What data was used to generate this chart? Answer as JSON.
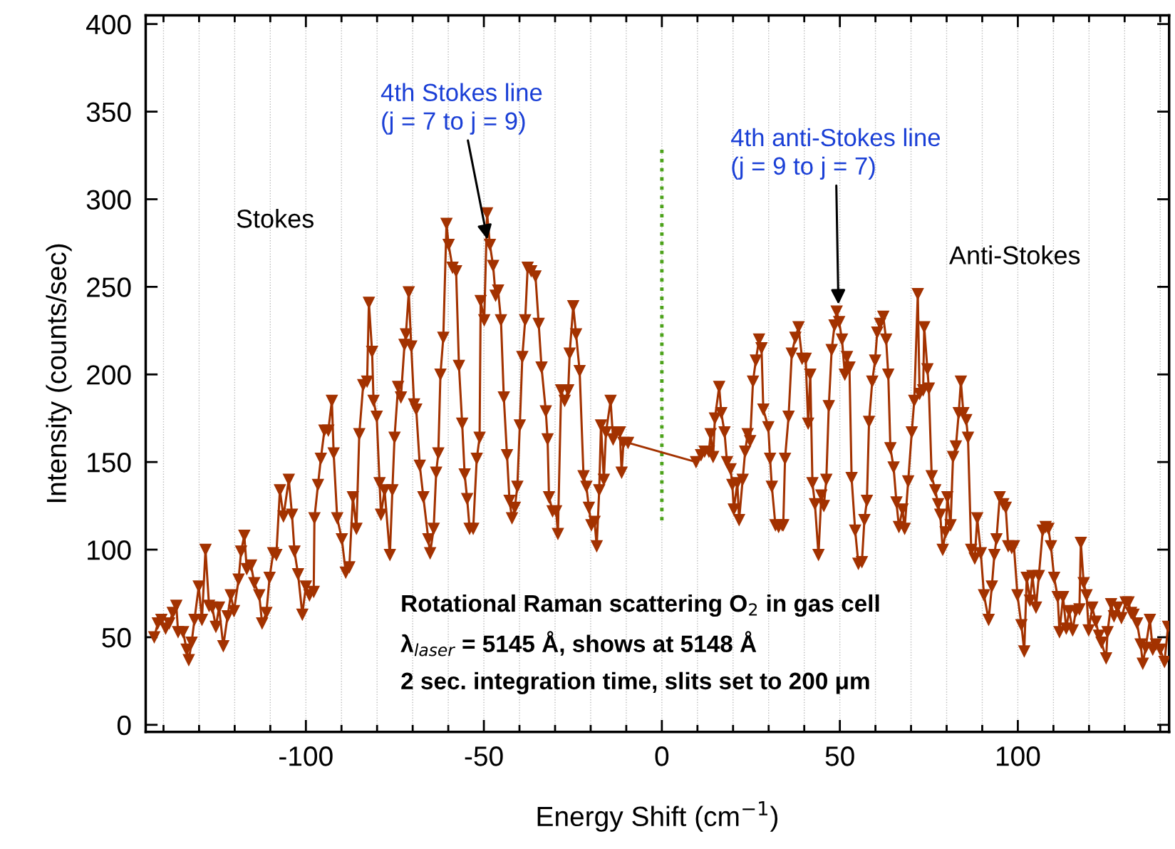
{
  "chart_data": {
    "type": "line",
    "xlabel": "Energy Shift (cm$^{−1}$)",
    "ylabel": "Intensity (counts/sec)",
    "xlim": [
      -145,
      142.5
    ],
    "ylim": [
      -4,
      405
    ],
    "xticks": [
      {
        "value": -140,
        "label": null
      },
      {
        "value": -130,
        "label": null
      },
      {
        "value": -120,
        "label": null
      },
      {
        "value": -110,
        "label": null
      },
      -100,
      {
        "value": -90,
        "label": null
      },
      {
        "value": -80,
        "label": null
      },
      {
        "value": -70,
        "label": null
      },
      {
        "value": -60,
        "label": null
      },
      -50,
      {
        "value": -40,
        "label": null
      },
      {
        "value": -30,
        "label": null
      },
      {
        "value": -20,
        "label": null
      },
      {
        "value": -10,
        "label": null
      },
      0,
      {
        "value": 10,
        "label": null
      },
      {
        "value": 20,
        "label": null
      },
      {
        "value": 30,
        "label": null
      },
      {
        "value": 40,
        "label": null
      },
      50,
      {
        "value": 60,
        "label": null
      },
      {
        "value": 70,
        "label": null
      },
      {
        "value": 80,
        "label": null
      },
      {
        "value": 90,
        "label": null
      },
      100,
      {
        "value": 110,
        "label": null
      },
      {
        "value": 120,
        "label": null
      },
      {
        "value": 130,
        "label": null
      },
      {
        "value": 140,
        "label": null
      }
    ],
    "yticks": [
      0,
      50,
      100,
      150,
      200,
      250,
      300,
      350,
      400
    ],
    "grid": "x",
    "legend": false,
    "marker": "triangle",
    "line_style": "solid",
    "ref_lines": [
      {
        "axis": "x",
        "value": 0,
        "color": "#4ca21a",
        "line_style": "dotted"
      }
    ],
    "annotations": [
      "Stokes",
      "Anti-Stokes",
      {
        "text": "4th Stokes line\n(j = 7 to j = 9)",
        "x": -49,
        "y": 277
      },
      {
        "text": "4th anti-Stokes line\n(j = 9 to j = 7)",
        "x": 49.6,
        "y": 240
      },
      "Rotational Raman scattering O$_{2}$ in gas cell",
      "λ$_{laser}$ = 5145 Å, shows at 5148 Å",
      "2 sec. integration time, slits set to 200 μm"
    ],
    "series": [
      {
        "color": "#a33200",
        "x": [
          -142.6,
          -141.6,
          -140.6,
          -139.4,
          -138.4,
          -137.4,
          -136.4,
          -135.9,
          -134.5,
          -133.5,
          -132.9,
          -132.1,
          -131.3,
          -130.1,
          -129.2,
          -128.2,
          -127.2,
          -126.3,
          -125.3,
          -124.4,
          -123.2,
          -122.0,
          -121.1,
          -120.2,
          -118.9,
          -118.2,
          -117.3,
          -116.6,
          -115.4,
          -114.5,
          -113.1,
          -112.3,
          -111.1,
          -110.2,
          -109.2,
          -108.3,
          -107.3,
          -106.3,
          -104.8,
          -103.9,
          -103.2,
          -102.2,
          -101.0,
          -100.0,
          -99.0,
          -97.8,
          -97.6,
          -96.6,
          -95.8,
          -94.8,
          -93.7,
          -92.7,
          -92.2,
          -91.2,
          -89.9,
          -88.8,
          -87.8,
          -86.8,
          -85.8,
          -85.0,
          -83.9,
          -82.8,
          -82.3,
          -81.4,
          -81.0,
          -80.1,
          -79.3,
          -78.9,
          -77.9,
          -76.4,
          -75.7,
          -75.1,
          -74.1,
          -73.3,
          -72.3,
          -71.9,
          -71.1,
          -70.4,
          -69.6,
          -69.0,
          -68.0,
          -67.0,
          -65.6,
          -65.1,
          -64.1,
          -63.4,
          -62.8,
          -62.2,
          -61.4,
          -60.5,
          -59.9,
          -58.8,
          -57.8,
          -57.0,
          -56.1,
          -55.4,
          -54.7,
          -54.0,
          -53.0,
          -52.0,
          -51.2,
          -50.9,
          -49.9,
          -49.1,
          -48.3,
          -47.4,
          -46.7,
          -46.0,
          -45.2,
          -44.4,
          -43.5,
          -42.8,
          -42.1,
          -41.3,
          -40.6,
          -39.9,
          -39.2,
          -38.4,
          -37.7,
          -36.7,
          -35.5,
          -34.6,
          -33.8,
          -32.6,
          -32.1,
          -31.7,
          -30.7,
          -29.7,
          -29.2,
          -28.3,
          -27.3,
          -26.3,
          -25.9,
          -24.9,
          -24.1,
          -23.1,
          -22.0,
          -21.2,
          -20.5,
          -19.8,
          -18.9,
          -18.3,
          -17.6,
          -17.1,
          -16.3,
          -15.7,
          -14.4,
          -13.7,
          -12.8,
          -11.8,
          -11.3,
          -10.8,
          -9.5,
          9.6,
          11.0,
          12.0,
          13.2,
          13.7,
          14.4,
          14.9,
          16.1,
          16.7,
          17.6,
          18.3,
          19.3,
          19.8,
          20.2,
          21.2,
          21.7,
          22.7,
          23.4,
          24.1,
          24.8,
          25.6,
          26.4,
          27.3,
          28.0,
          28.5,
          29.9,
          30.4,
          30.9,
          31.9,
          32.8,
          33.8,
          34.1,
          34.6,
          35.6,
          36.5,
          37.5,
          38.4,
          39.4,
          40.4,
          41.1,
          41.7,
          42.3,
          43.0,
          44.0,
          44.8,
          45.5,
          46.2,
          46.9,
          47.7,
          48.5,
          49.1,
          49.8,
          50.6,
          51.4,
          52.0,
          52.7,
          53.3,
          54.3,
          55.2,
          56.2,
          56.9,
          57.6,
          58.2,
          59.1,
          59.9,
          60.5,
          61.3,
          62.2,
          63.0,
          63.6,
          64.2,
          65.1,
          65.9,
          66.6,
          67.6,
          68.2,
          69.2,
          70.2,
          70.9,
          71.9,
          72.4,
          73.4,
          73.7,
          74.6,
          75.0,
          75.8,
          76.8,
          77.6,
          78.2,
          78.9,
          79.7,
          80.2,
          81.1,
          81.8,
          82.6,
          83.4,
          84.0,
          84.7,
          85.5,
          86.0,
          86.9,
          87.9,
          88.6,
          89.6,
          90.5,
          91.8,
          92.7,
          93.4,
          94.0,
          94.9,
          95.9,
          96.6,
          97.3,
          98.3,
          98.9,
          99.9,
          101.0,
          101.8,
          102.5,
          103.4,
          104.1,
          105.1,
          105.9,
          107.0,
          107.8,
          108.6,
          109.3,
          110.2,
          111.2,
          111.7,
          112.7,
          113.6,
          114.4,
          115.4,
          116.3,
          117.3,
          117.7,
          118.5,
          119.3,
          119.9,
          120.9,
          121.9,
          122.8,
          123.5,
          124.8,
          125.2,
          126.2,
          127.0,
          128.0,
          129.1,
          130.3,
          131.1,
          131.8,
          132.5,
          133.5,
          134.5,
          135.1,
          135.9,
          137.1,
          137.9,
          138.8,
          140.0,
          141.2,
          142.2
        ],
        "values": [
          50,
          58,
          60,
          55,
          58,
          64,
          68,
          53,
          53,
          43,
          37,
          47,
          60,
          79,
          60,
          100,
          68,
          67,
          56,
          67,
          45,
          62,
          74,
          65,
          83,
          99,
          108,
          89,
          91,
          81,
          74,
          58,
          64,
          84,
          98,
          97,
          134,
          119,
          140,
          120,
          99,
          86,
          63,
          79,
          74,
          76,
          118,
          137,
          152,
          168,
          168,
          185,
          155,
          118,
          106,
          87,
          90,
          130,
          112,
          166,
          194,
          196,
          241,
          213,
          185,
          176,
          138,
          120,
          134,
          97,
          134,
          164,
          193,
          187,
          217,
          223,
          247,
          216,
          183,
          180,
          148,
          130,
          106,
          98,
          112,
          144,
          155,
          200,
          221,
          286,
          274,
          261,
          259,
          205,
          172,
          143,
          129,
          112,
          112,
          152,
          164,
          242,
          231,
          292,
          274,
          262,
          245,
          248,
          231,
          187,
          154,
          128,
          118,
          124,
          136,
          171,
          210,
          231,
          261,
          259,
          256,
          229,
          204,
          179,
          163,
          130,
          122,
          122,
          109,
          191,
          185,
          191,
          212,
          239,
          223,
          202,
          142,
          136,
          124,
          114,
          116,
          102,
          134,
          171,
          140,
          167,
          185,
          163,
          167,
          167,
          144,
          161,
          161,
          150,
          154,
          156,
          156,
          166,
          153,
          175,
          193,
          178,
          167,
          150,
          146,
          137,
          123,
          138,
          117,
          140,
          156,
          166,
          162,
          196,
          208,
          220,
          215,
          180,
          170,
          152,
          136,
          114,
          113,
          114,
          114,
          152,
          176,
          212,
          221,
          227,
          209,
          209,
          172,
          200,
          138,
          126,
          97,
          131,
          125,
          140,
          182,
          214,
          228,
          236,
          230,
          220,
          200,
          210,
          204,
          141,
          111,
          92,
          93,
          117,
          128,
          173,
          196,
          208,
          224,
          229,
          233,
          220,
          200,
          158,
          147,
          127,
          113,
          123,
          112,
          139,
          167,
          185,
          246,
          189,
          191,
          227,
          203,
          192,
          142,
          134,
          126,
          120,
          100,
          110,
          130,
          114,
          153,
          159,
          178,
          196,
          178,
          174,
          164,
          100,
          95,
          118,
          98,
          74,
          60,
          79,
          97,
          106,
          130,
          126,
          124,
          102,
          101,
          102,
          74,
          57,
          42,
          84,
          71,
          85,
          67,
          85,
          111,
          113,
          112,
          102,
          84,
          73,
          53,
          73,
          55,
          65,
          54,
          65,
          66,
          104,
          81,
          74,
          54,
          67,
          59,
          51,
          47,
          38,
          53,
          69,
          62,
          67,
          61,
          70,
          70,
          64,
          63,
          58,
          46,
          35,
          44,
          60,
          43,
          46,
          43,
          36,
          56
        ]
      }
    ]
  }
}
